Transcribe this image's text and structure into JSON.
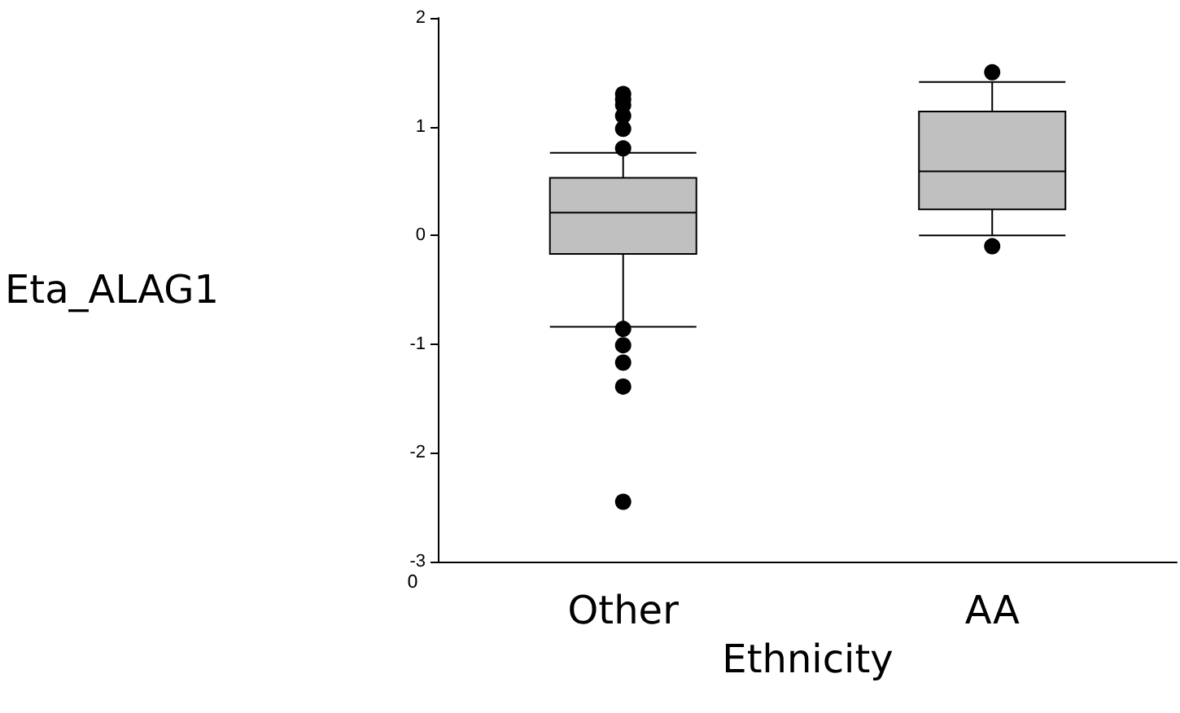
{
  "chart_data": {
    "type": "box",
    "xlabel": "Ethnicity",
    "ylabel": "Eta_ALAG1",
    "categories": [
      "Other",
      "AA"
    ],
    "boxes": [
      {
        "low": -0.84,
        "q1": -0.17,
        "median": 0.21,
        "q3": 0.53,
        "high": 0.76,
        "outliers": [
          0.8,
          0.98,
          1.1,
          1.2,
          1.25,
          1.3,
          -0.86,
          -1.01,
          -1.17,
          -1.39,
          -2.45
        ]
      },
      {
        "low": 0.0,
        "q1": 0.24,
        "median": 0.59,
        "q3": 1.14,
        "high": 1.41,
        "outliers": [
          1.5,
          -0.1
        ]
      }
    ],
    "color": "#c0c0c0",
    "ylim": [
      -3,
      2
    ],
    "yticks": [
      -3,
      -2,
      -1,
      0,
      1,
      2
    ],
    "grid": false,
    "annotations": [
      "0"
    ]
  }
}
